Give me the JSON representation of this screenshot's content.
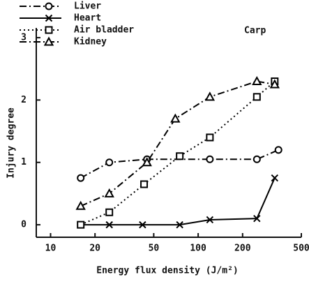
{
  "chart_data": {
    "type": "line",
    "annotation": "Carp",
    "x_label": "Energy flux density (J/m²)",
    "y_label": "Injury degree",
    "xscale": "log",
    "xlim": [
      8,
      500
    ],
    "xticks": [
      10,
      20,
      50,
      100,
      200,
      500
    ],
    "ylim": [
      -0.2,
      3.1
    ],
    "yticks": [
      0,
      1,
      2,
      3
    ],
    "grid": false,
    "series": [
      {
        "name": "Liver",
        "color": "#000000",
        "marker": "circle",
        "dash": "dash-dot",
        "x": [
          16,
          25,
          45,
          120,
          250,
          350
        ],
        "values": [
          0.75,
          1.0,
          1.05,
          1.05,
          1.05,
          1.2
        ]
      },
      {
        "name": "Heart",
        "color": "#000000",
        "marker": "x",
        "dash": "solid",
        "x": [
          16,
          25,
          42,
          75,
          120,
          250,
          330
        ],
        "values": [
          0,
          0,
          0,
          0,
          0.08,
          0.1,
          0.75
        ]
      },
      {
        "name": "Air bladder",
        "color": "#000000",
        "marker": "square",
        "dash": "dotted",
        "x": [
          16,
          25,
          43,
          75,
          120,
          250,
          330
        ],
        "values": [
          0,
          0.2,
          0.65,
          1.1,
          1.4,
          2.05,
          2.3
        ]
      },
      {
        "name": "Kidney",
        "color": "#000000",
        "marker": "triangle",
        "dash": "dash-dot",
        "x": [
          16,
          25,
          45,
          70,
          120,
          250,
          330
        ],
        "values": [
          0.3,
          0.5,
          1.0,
          1.7,
          2.05,
          2.3,
          2.25
        ]
      }
    ]
  }
}
